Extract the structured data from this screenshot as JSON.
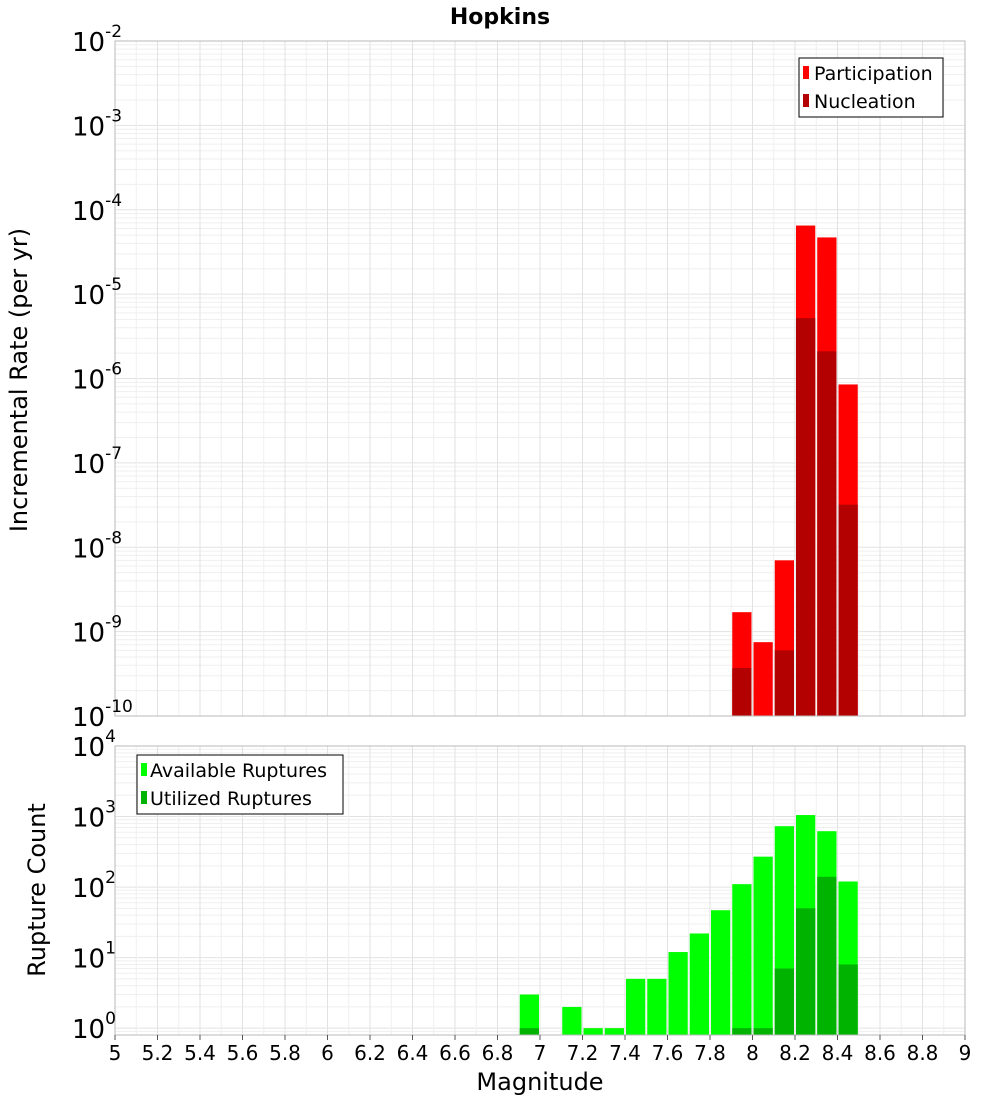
{
  "chart_data": [
    {
      "type": "bar",
      "title": "Hopkins",
      "ylabel": "Incremental Rate (per yr)",
      "xlabel": "",
      "xlim": [
        5,
        9
      ],
      "yscale": "log",
      "ylim": [
        1e-10,
        0.01
      ],
      "y_tick_base": "10",
      "y_tick_exponents": [
        "-2",
        "-3",
        "-4",
        "-5",
        "-6",
        "-7",
        "-8",
        "-9",
        "-10"
      ],
      "bin_width": 0.1,
      "legend_position": "top-right",
      "series": [
        {
          "name": "Participation",
          "color": "#ff0000",
          "x": [
            7.95,
            8.05,
            8.15,
            8.25,
            8.35,
            8.45
          ],
          "values": [
            1.7e-09,
            7.5e-10,
            7e-09,
            6.5e-05,
            4.7e-05,
            8.5e-07
          ]
        },
        {
          "name": "Nucleation",
          "color": "#b30000",
          "x": [
            7.95,
            8.15,
            8.25,
            8.35,
            8.45
          ],
          "values": [
            3.7e-10,
            6e-10,
            5.2e-06,
            2.1e-06,
            3.2e-08
          ]
        }
      ]
    },
    {
      "type": "bar",
      "title": "",
      "ylabel": "Rupture Count",
      "xlabel": "Magnitude",
      "xlim": [
        5,
        9
      ],
      "x_ticks": [
        "5",
        "5.2",
        "5.4",
        "5.6",
        "5.8",
        "6",
        "6.2",
        "6.4",
        "6.6",
        "6.8",
        "7",
        "7.2",
        "7.4",
        "7.6",
        "7.8",
        "8",
        "8.2",
        "8.4",
        "8.6",
        "8.8",
        "9"
      ],
      "yscale": "log",
      "ylim": [
        0.8,
        10000
      ],
      "y_tick_base": "10",
      "y_tick_exponents": [
        "4",
        "3",
        "2",
        "1",
        "0"
      ],
      "bin_width": 0.1,
      "legend_position": "top-left",
      "series": [
        {
          "name": "Available Ruptures",
          "color": "#00ff00",
          "x": [
            6.95,
            7.15,
            7.25,
            7.35,
            7.45,
            7.55,
            7.65,
            7.75,
            7.85,
            7.95,
            8.05,
            8.15,
            8.25,
            8.35,
            8.45
          ],
          "values": [
            3,
            2,
            1,
            1,
            5,
            5,
            12,
            22,
            47,
            110,
            270,
            730,
            1050,
            620,
            120
          ]
        },
        {
          "name": "Utilized Ruptures",
          "color": "#00b300",
          "x": [
            6.95,
            7.95,
            8.05,
            8.15,
            8.25,
            8.35,
            8.45
          ],
          "values": [
            1,
            1,
            1,
            7,
            50,
            140,
            8
          ]
        }
      ]
    }
  ]
}
